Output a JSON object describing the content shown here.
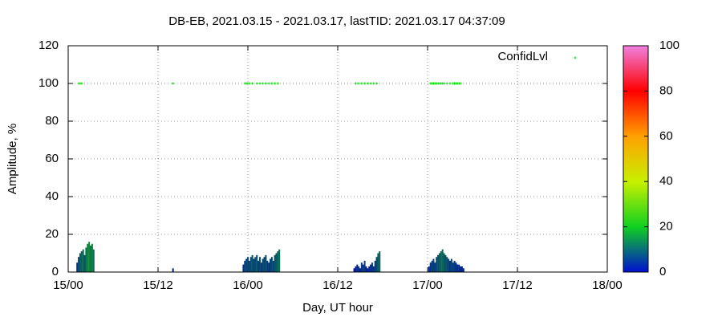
{
  "chart_data": {
    "type": "combo",
    "title": "DB-EB, 2021.03.15 - 2021.03.17, lastTID: 2021.03.17 04:37:09",
    "xlabel": "Day, UT hour",
    "ylabel": "Amplitude, %",
    "xlim": [
      0,
      72
    ],
    "xticks": [
      {
        "value": 0,
        "label": "15/00"
      },
      {
        "value": 12,
        "label": "15/12"
      },
      {
        "value": 24,
        "label": "16/00"
      },
      {
        "value": 36,
        "label": "16/12"
      },
      {
        "value": 48,
        "label": "17/00"
      },
      {
        "value": 60,
        "label": "17/12"
      },
      {
        "value": 72,
        "label": "18/00"
      }
    ],
    "ylim": [
      0,
      120
    ],
    "yticks": [
      0,
      20,
      40,
      60,
      80,
      100,
      120
    ],
    "grid": true,
    "colorbar": {
      "clim": [
        0,
        100
      ],
      "ticks": [
        0,
        20,
        40,
        60,
        80,
        100
      ],
      "colors": [
        "#0010d0",
        "#10d020",
        "#c8f000",
        "#ffa000",
        "#ff0000",
        "#f080e0"
      ]
    },
    "series": [
      {
        "type": "bar",
        "colormap": true,
        "x": [
          1.2,
          1.4,
          1.6,
          1.8,
          2.0,
          2.2,
          2.4,
          2.6,
          2.8,
          3.0,
          3.2,
          3.4,
          14.0,
          23.4,
          23.6,
          23.8,
          24.0,
          24.2,
          24.4,
          24.6,
          24.8,
          25.0,
          25.2,
          25.4,
          25.6,
          25.8,
          26.0,
          26.2,
          26.4,
          26.6,
          26.8,
          27.0,
          27.2,
          27.4,
          27.6,
          27.8,
          28.0,
          28.2,
          38.2,
          38.4,
          38.6,
          38.8,
          39.0,
          39.2,
          39.4,
          39.6,
          39.8,
          40.0,
          40.2,
          40.4,
          40.6,
          40.8,
          41.0,
          41.2,
          41.4,
          41.6,
          48.2,
          48.4,
          48.6,
          48.8,
          49.0,
          49.2,
          49.4,
          49.6,
          49.8,
          50.0,
          50.2,
          50.4,
          50.6,
          50.8,
          51.0,
          51.2,
          51.4,
          51.6,
          51.8,
          52.0,
          52.2,
          52.4,
          52.6,
          52.8
        ],
        "values": [
          5,
          8,
          10,
          11,
          12,
          9,
          13,
          15,
          16,
          14,
          15,
          12,
          2,
          4,
          6,
          7,
          8,
          6,
          8,
          9,
          7,
          8,
          9,
          6,
          8,
          5,
          7,
          8,
          9,
          6,
          5,
          7,
          8,
          6,
          9,
          10,
          11,
          12,
          2,
          3,
          4,
          3,
          2,
          5,
          4,
          6,
          3,
          2,
          3,
          4,
          5,
          3,
          6,
          8,
          10,
          11,
          3,
          5,
          6,
          7,
          5,
          8,
          9,
          10,
          11,
          12,
          10,
          9,
          8,
          7,
          6,
          7,
          5,
          6,
          5,
          4,
          4,
          3,
          3,
          2
        ]
      },
      {
        "type": "scatter",
        "name": "ConfidLvl",
        "color": "#00e000",
        "x": [
          1.4,
          1.6,
          1.8,
          14.0,
          23.6,
          23.8,
          24.0,
          24.2,
          24.6,
          25.2,
          25.6,
          26.0,
          26.4,
          26.8,
          27.2,
          27.6,
          28.0,
          38.4,
          38.8,
          39.2,
          39.6,
          40.0,
          40.4,
          40.8,
          41.2,
          48.4,
          48.6,
          48.8,
          49.0,
          49.2,
          49.4,
          49.6,
          49.8,
          50.0,
          50.2,
          50.6,
          51.0,
          51.4,
          51.6,
          51.8,
          52.0,
          52.2,
          52.4
        ],
        "values": [
          100,
          100,
          100,
          100,
          100,
          100,
          100,
          100,
          100,
          100,
          100,
          100,
          100,
          100,
          100,
          100,
          100,
          100,
          100,
          100,
          100,
          100,
          100,
          100,
          100,
          100,
          100,
          100,
          100,
          100,
          100,
          100,
          100,
          100,
          100,
          100,
          100,
          100,
          100,
          100,
          100,
          100,
          100
        ]
      }
    ]
  }
}
